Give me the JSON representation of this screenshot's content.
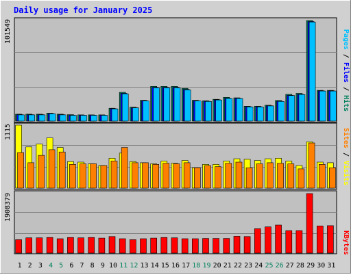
{
  "chart_data": {
    "type": "bar",
    "title": "Daily usage for January 2025",
    "days": [
      "1",
      "2",
      "3",
      "4",
      "5",
      "6",
      "7",
      "8",
      "9",
      "10",
      "11",
      "12",
      "13",
      "14",
      "15",
      "16",
      "17",
      "18",
      "19",
      "20",
      "21",
      "22",
      "23",
      "24",
      "25",
      "26",
      "27",
      "28",
      "29",
      "30",
      "31"
    ],
    "weekend_days": [
      "4",
      "5",
      "11",
      "12",
      "18",
      "19",
      "25",
      "26"
    ],
    "colors": {
      "title": "#0000ff",
      "hits": "#00805c",
      "files": "#0000ff",
      "pages": "#00c0ff",
      "visits": "#ffff00",
      "sites": "#ff8000",
      "kbytes": "#ff0000",
      "weekend_label": "#00805c",
      "weekday_label": "#000000",
      "plot_bg": "#c0c0c0",
      "frame_bg": "#d0d0d0"
    },
    "panels": [
      {
        "id": "traffic",
        "max_label": "101549",
        "ymax": 101549,
        "legend": [
          {
            "text": "Pages",
            "color": "#00c0ff"
          },
          {
            "text": " / ",
            "color": "#000000"
          },
          {
            "text": "Files",
            "color": "#0000ff"
          },
          {
            "text": " / ",
            "color": "#000000"
          },
          {
            "text": "Hits",
            "color": "#00805c"
          }
        ],
        "series": [
          {
            "name": "Hits",
            "color": "#00805c",
            "values": [
              7000,
              7000,
              7000,
              8000,
              7000,
              6500,
              6300,
              6300,
              6300,
              13000,
              29000,
              14000,
              21000,
              35000,
              35000,
              35000,
              33000,
              21000,
              20500,
              22000,
              24000,
              23500,
              15000,
              15000,
              16000,
              20800,
              27000,
              28000,
              101549,
              31000,
              31000
            ]
          },
          {
            "name": "Files",
            "color": "#0000ff",
            "values": [
              6500,
              6500,
              6500,
              7500,
              6500,
              6000,
              6000,
              6000,
              6000,
              12500,
              28000,
              13500,
              20500,
              34000,
              34000,
              34000,
              32000,
              20500,
              20000,
              21500,
              23000,
              23000,
              14500,
              14500,
              15500,
              20000,
              26000,
              27000,
              100500,
              30500,
              30500
            ]
          },
          {
            "name": "Pages",
            "color": "#00c0ff",
            "values": [
              6300,
              6300,
              6300,
              7300,
              6300,
              5800,
              5800,
              5800,
              5800,
              12300,
              27500,
              13300,
              20300,
              33500,
              33500,
              33500,
              31500,
              20300,
              19800,
              21300,
              22800,
              22800,
              14300,
              14300,
              15300,
              19800,
              25800,
              26800,
              100000,
              30300,
              30300
            ]
          }
        ]
      },
      {
        "id": "visitors",
        "max_label": "1115",
        "ymax": 1115,
        "legend": [
          {
            "text": "Sites",
            "color": "#ff8000"
          },
          {
            "text": " / ",
            "color": "#000000"
          },
          {
            "text": "Visits",
            "color": "#ffff00"
          }
        ],
        "series": [
          {
            "name": "Visits",
            "color": "#ffff00",
            "values": [
              1115,
              730,
              780,
              890,
              720,
              470,
              460,
              430,
              400,
              530,
              620,
              470,
              450,
              430,
              480,
              440,
              490,
              360,
              420,
              420,
              480,
              520,
              510,
              490,
              520,
              530,
              480,
              400,
              820,
              460,
              450
            ]
          },
          {
            "name": "Sites",
            "color": "#ff8000",
            "values": [
              630,
              450,
              580,
              680,
              640,
              420,
              430,
              430,
              400,
              480,
              720,
              450,
              450,
              420,
              440,
              430,
              450,
              360,
              400,
              380,
              440,
              460,
              360,
              430,
              450,
              440,
              430,
              340,
              800,
              420,
              360
            ]
          }
        ]
      },
      {
        "id": "kbytes",
        "max_label": "1908379",
        "ymax": 1908379,
        "legend": [
          {
            "text": "KBytes",
            "color": "#ff0000"
          }
        ],
        "series": [
          {
            "name": "KBytes",
            "color": "#ff0000",
            "values": [
              430000,
              490000,
              490000,
              500000,
              460000,
              500000,
              490000,
              500000,
              480000,
              530000,
              460000,
              430000,
              460000,
              480000,
              500000,
              490000,
              460000,
              460000,
              470000,
              470000,
              470000,
              540000,
              530000,
              780000,
              840000,
              900000,
              720000,
              720000,
              1908379,
              870000,
              880000
            ]
          }
        ]
      }
    ]
  }
}
